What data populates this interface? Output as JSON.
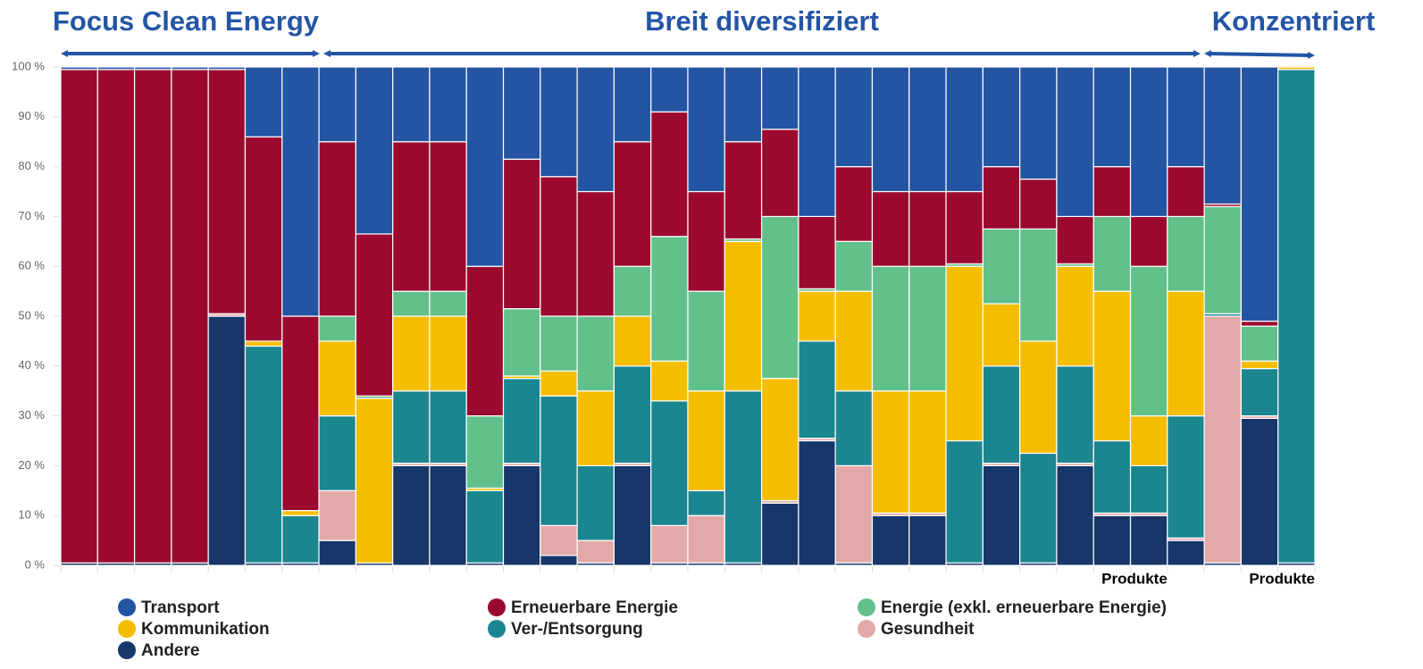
{
  "chart_data": {
    "type": "stacked_bar_100",
    "annotations": [
      "Focus Clean Energy",
      "Breit diversifiziert",
      "Konzentriert"
    ],
    "categories": [
      null,
      null,
      null,
      null,
      null,
      null,
      null,
      null,
      null,
      null,
      null,
      null,
      null,
      null,
      null,
      null,
      null,
      null,
      null,
      null,
      null,
      null,
      null,
      null,
      null,
      null,
      null,
      null,
      null,
      "Produkte",
      null,
      null,
      null,
      "Produkte"
    ],
    "series": [
      {
        "name": "Transport",
        "color": "#2355a3",
        "values": [
          0.5,
          0.5,
          0.5,
          0.5,
          0.5,
          14,
          50,
          15,
          33.5,
          15,
          15,
          40,
          18.5,
          22,
          25,
          15,
          9,
          25,
          15,
          12.5,
          30,
          20,
          25,
          25,
          25,
          20,
          22.5,
          30,
          20,
          30,
          20,
          27.5,
          51,
          0
        ]
      },
      {
        "name": "Erneuerbare Energie",
        "color": "#9b0a2e",
        "values": [
          99,
          99,
          99,
          99,
          49,
          41,
          39,
          35,
          32.5,
          30,
          30,
          30,
          30,
          28,
          25,
          25,
          25,
          20,
          19.5,
          17.5,
          14.5,
          15,
          15,
          15,
          14.5,
          12.5,
          10,
          9.5,
          10,
          10,
          10,
          0.5,
          1,
          0
        ]
      },
      {
        "name": "Energie (exkl. erneuerbare Energie)",
        "color": "#62c08a",
        "values": [
          0,
          0,
          0,
          0,
          0,
          0,
          0,
          5,
          0.5,
          5,
          5,
          14.5,
          13.5,
          11,
          15,
          10,
          25,
          20,
          0.5,
          32.5,
          0.5,
          10,
          25,
          25,
          0.5,
          15,
          22.5,
          0.5,
          15,
          30,
          15,
          21.5,
          7,
          0
        ]
      },
      {
        "name": "Kommunikation",
        "color": "#f5bd00",
        "values": [
          0,
          0,
          0,
          0,
          0,
          1,
          1,
          15,
          33,
          15,
          15,
          0.5,
          0.5,
          5,
          15,
          10,
          8,
          20,
          30,
          24.5,
          10,
          20,
          24.5,
          24.5,
          35,
          12.5,
          22.5,
          20,
          30,
          10,
          25,
          0,
          1.5,
          0.5
        ]
      },
      {
        "name": "Ver-/Entsorgung",
        "color": "#1b8590",
        "values": [
          0,
          0,
          0,
          0,
          0,
          43.5,
          9.5,
          15,
          0,
          14.5,
          14.5,
          14.5,
          17,
          26,
          15,
          19.5,
          25,
          5,
          34.5,
          0,
          19.5,
          15,
          0,
          0,
          24.5,
          19.5,
          22,
          19.5,
          14.5,
          9.5,
          24.5,
          0.5,
          9.5,
          99
        ]
      },
      {
        "name": "Gesundheit",
        "color": "#e3a9a8",
        "values": [
          0,
          0,
          0,
          0,
          0.5,
          0,
          0,
          10,
          0,
          0.5,
          0.5,
          0,
          0.5,
          6,
          4.5,
          0.5,
          7.5,
          9.5,
          0,
          0.5,
          0.5,
          19.5,
          0.5,
          0.5,
          0,
          0.5,
          0,
          0.5,
          0.5,
          0.5,
          0.5,
          49.5,
          0.5,
          0
        ]
      },
      {
        "name": "Andere",
        "color": "#17366a",
        "values": [
          0.5,
          0.5,
          0.5,
          0.5,
          50,
          0.5,
          0.5,
          5,
          0.5,
          20,
          20,
          0.5,
          20,
          2,
          0.5,
          20,
          0.5,
          0.5,
          0.5,
          12.5,
          25,
          0.5,
          10,
          10,
          0.5,
          20,
          0.5,
          20,
          10,
          10,
          5,
          0.5,
          29.5,
          0.5
        ]
      }
    ],
    "ylim": [
      0,
      100
    ],
    "yticks": [
      {
        "value": 0,
        "label": "0 %"
      },
      {
        "value": 10,
        "label": "10 %"
      },
      {
        "value": 20,
        "label": "20 %"
      },
      {
        "value": 30,
        "label": "30 %"
      },
      {
        "value": 40,
        "label": "40 %"
      },
      {
        "value": 50,
        "label": "50 %"
      },
      {
        "value": 60,
        "label": "60 %"
      },
      {
        "value": 70,
        "label": "70 %"
      },
      {
        "value": 80,
        "label": "80 %"
      },
      {
        "value": 90,
        "label": "90 %"
      },
      {
        "value": 100,
        "label": "100 %"
      }
    ],
    "grid": false
  }
}
